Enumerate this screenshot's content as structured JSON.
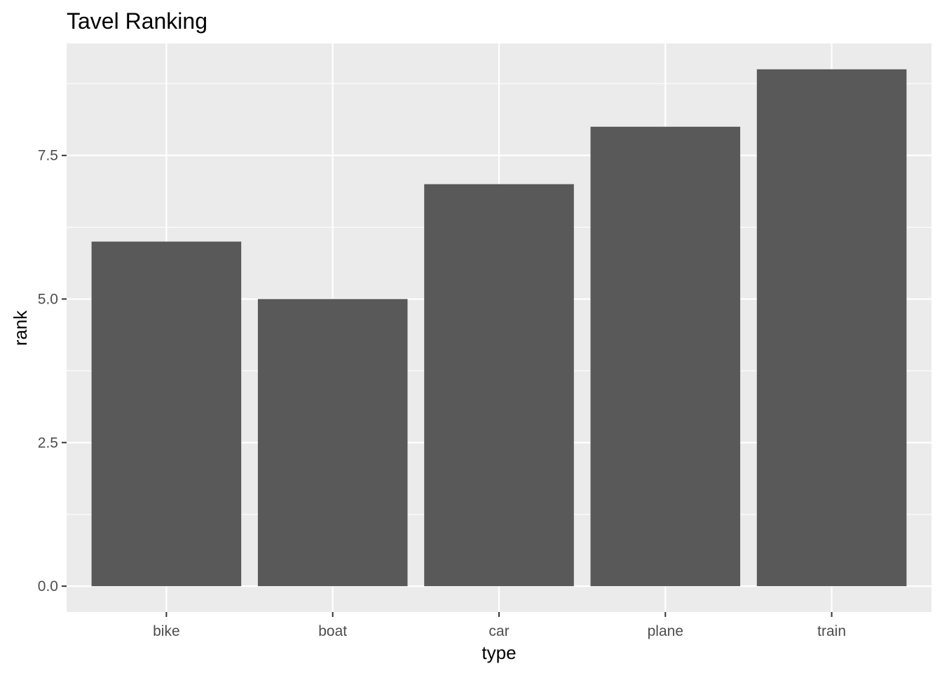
{
  "chart_data": {
    "type": "bar",
    "title": "Tavel Ranking",
    "xlabel": "type",
    "ylabel": "rank",
    "categories": [
      "bike",
      "boat",
      "car",
      "plane",
      "train"
    ],
    "values": [
      6,
      5,
      7,
      8,
      9
    ],
    "ylim": [
      -0.45,
      9.45
    ],
    "yticks": [
      0,
      2.5,
      5,
      7.5
    ],
    "ytick_labels": [
      "0.0",
      "2.5",
      "5.0",
      "7.5"
    ],
    "grid": true,
    "legend": "none",
    "colors": {
      "bar": "#595959",
      "panel_background": "#ebebeb",
      "grid": "#ffffff",
      "tick_text": "#4d4d4d",
      "tick_mark": "#333333"
    }
  }
}
